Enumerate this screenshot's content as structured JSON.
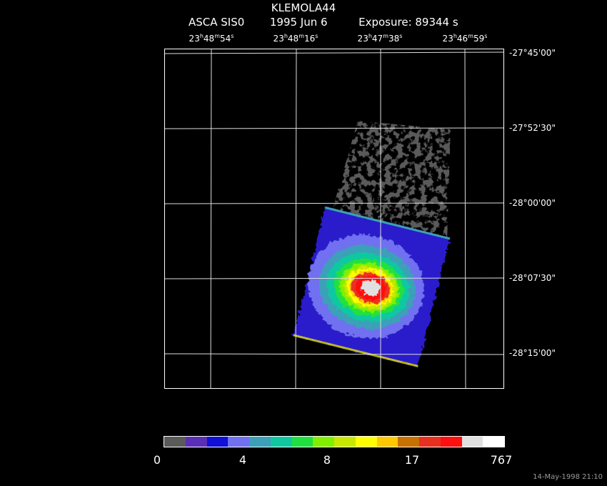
{
  "header": {
    "title": "KLEMOLA44",
    "instrument": "ASCA SIS0",
    "date": "1995 Jun  6",
    "exposure": "Exposure: 89344 s"
  },
  "ra_ticks": [
    {
      "h": "23",
      "m": "48",
      "s": "54"
    },
    {
      "h": "23",
      "m": "48",
      "s": "16"
    },
    {
      "h": "23",
      "m": "47",
      "s": "38"
    },
    {
      "h": "23",
      "m": "46",
      "s": "59"
    }
  ],
  "dec_ticks": [
    "-27°45'00\"",
    "-27°52'30\"",
    "-28°00'00\"",
    "-28°07'30\"",
    "-28°15'00\""
  ],
  "colorbar": {
    "colors": [
      "#5a5a5a",
      "#5b2fb5",
      "#1010d8",
      "#7070f0",
      "#3ba0b8",
      "#10c8a0",
      "#20e040",
      "#80f000",
      "#c8e800",
      "#ffff00",
      "#ffc800",
      "#c87000",
      "#e83020",
      "#ff1010",
      "#e0e0e0",
      "#ffffff"
    ],
    "labels": [
      "0",
      "4",
      "8",
      "17",
      "767"
    ]
  },
  "footer": "14-May-1998 21:10"
}
